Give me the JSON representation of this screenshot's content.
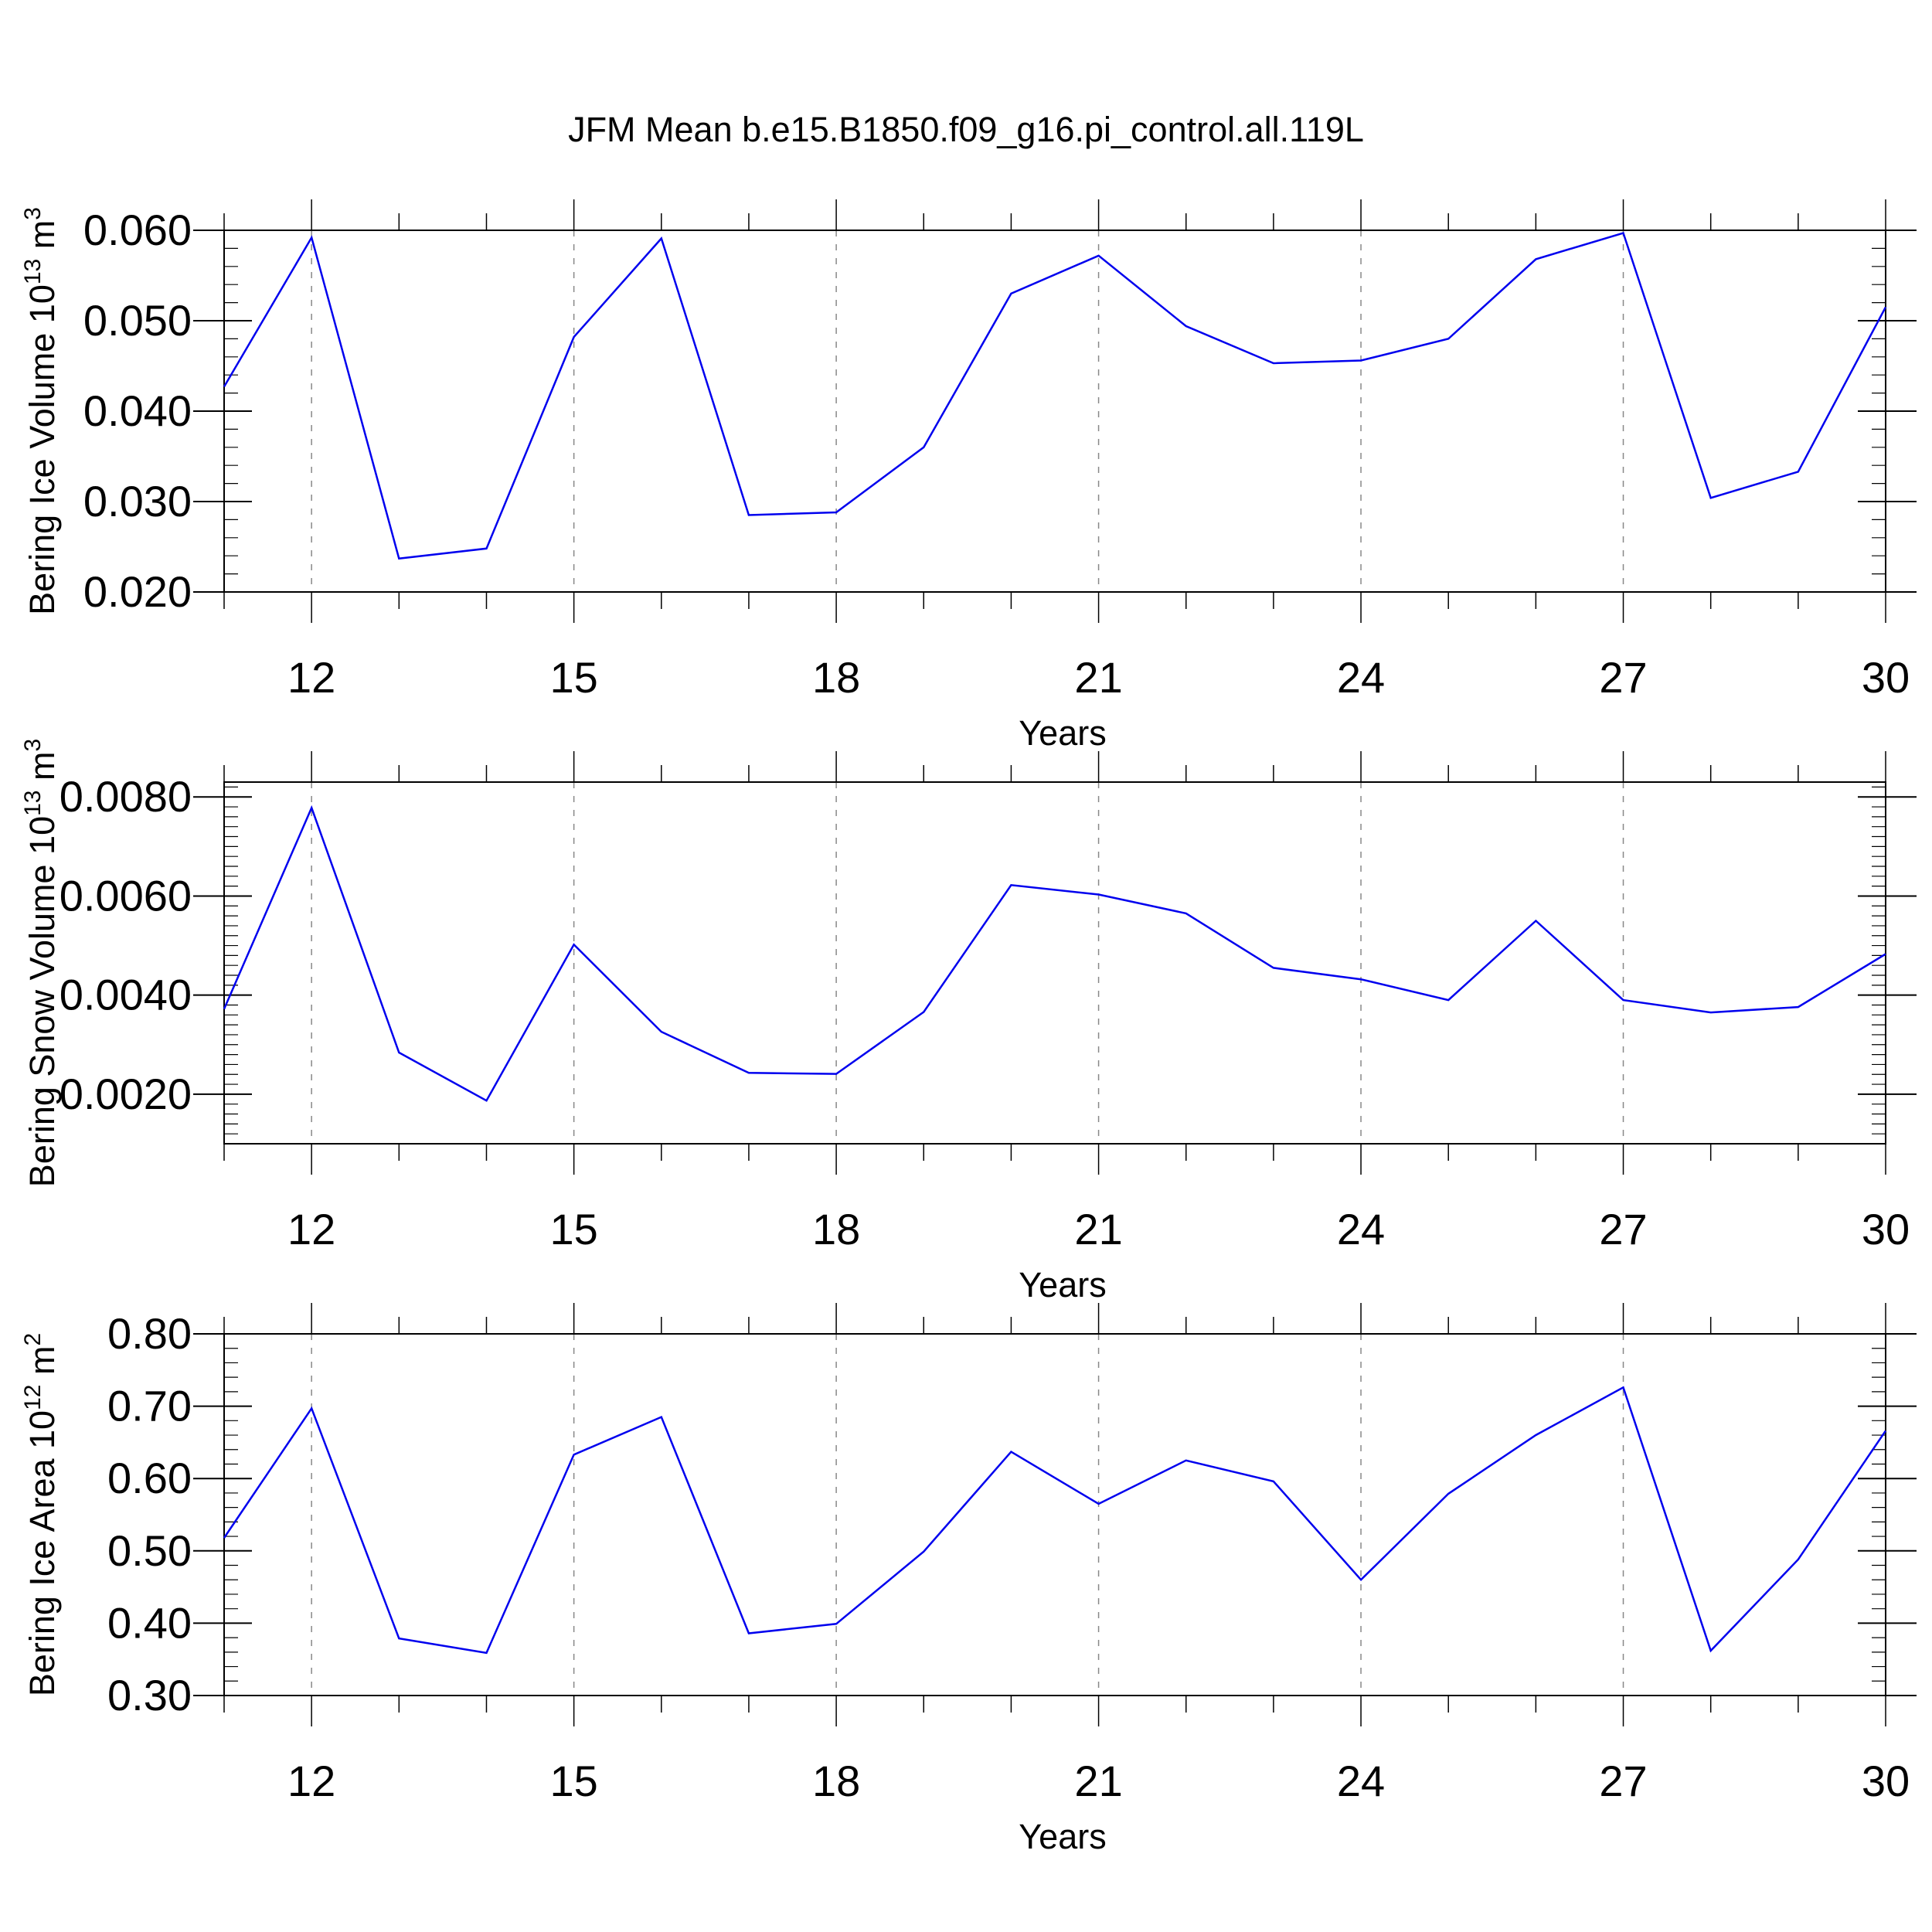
{
  "title": "JFM Mean b.e15.B1850.f09_g16.pi_control.all.119L",
  "colors": {
    "series": "#0000ee",
    "axis": "#000000",
    "grid": "#888888"
  },
  "chart_data": [
    {
      "type": "line",
      "ylabel": "Bering Ice Volume 10",
      "ylabel_exp": "13",
      "ylabel_unit": " m",
      "ylabel_unit_exp": "3",
      "xlabel": "Years",
      "xlim": [
        11,
        30
      ],
      "ylim": [
        0.02,
        0.06
      ],
      "yticks": [
        0.02,
        0.03,
        0.04,
        0.05,
        0.06
      ],
      "ytick_labels": [
        "0.020",
        "0.030",
        "0.040",
        "0.050",
        "0.060"
      ],
      "xticks": [
        12,
        15,
        18,
        21,
        24,
        27,
        30
      ],
      "xtick_labels": [
        "12",
        "15",
        "18",
        "21",
        "24",
        "27",
        "30"
      ],
      "grid": "vertical dashed at major x ticks",
      "x": [
        11,
        12,
        13,
        14,
        15,
        16,
        17,
        18,
        19,
        20,
        21,
        22,
        23,
        24,
        25,
        26,
        27,
        28,
        29,
        30
      ],
      "values": [
        0.0427,
        0.0592,
        0.0237,
        0.0248,
        0.0482,
        0.0591,
        0.0285,
        0.0288,
        0.036,
        0.053,
        0.0572,
        0.0494,
        0.0453,
        0.0456,
        0.048,
        0.0568,
        0.0597,
        0.0304,
        0.0333,
        0.0515
      ]
    },
    {
      "type": "line",
      "ylabel": "Bering Snow Volume 10",
      "ylabel_exp": "13",
      "ylabel_unit": " m",
      "ylabel_unit_exp": "3",
      "xlabel": "Years",
      "xlim": [
        11,
        30
      ],
      "ylim": [
        0.001,
        0.0083
      ],
      "yticks": [
        0.002,
        0.004,
        0.006,
        0.008
      ],
      "ytick_labels": [
        "0.0020",
        "0.0040",
        "0.0060",
        "0.0080"
      ],
      "xticks": [
        12,
        15,
        18,
        21,
        24,
        27,
        30
      ],
      "xtick_labels": [
        "12",
        "15",
        "18",
        "21",
        "24",
        "27",
        "30"
      ],
      "grid": "vertical dashed at major x ticks",
      "x": [
        11,
        12,
        13,
        14,
        15,
        16,
        17,
        18,
        19,
        20,
        21,
        22,
        23,
        24,
        25,
        26,
        27,
        28,
        29,
        30
      ],
      "values": [
        0.00372,
        0.00778,
        0.00284,
        0.00187,
        0.00502,
        0.00326,
        0.00243,
        0.00241,
        0.00366,
        0.00622,
        0.00603,
        0.00565,
        0.00455,
        0.00432,
        0.0039,
        0.0055,
        0.0039,
        0.00365,
        0.00376,
        0.00483
      ]
    },
    {
      "type": "line",
      "ylabel": "Bering Ice Area 10",
      "ylabel_exp": "12",
      "ylabel_unit": " m",
      "ylabel_unit_exp": "2",
      "xlabel": "Years",
      "xlim": [
        11,
        30
      ],
      "ylim": [
        0.3,
        0.8
      ],
      "yticks": [
        0.3,
        0.4,
        0.5,
        0.6,
        0.7,
        0.8
      ],
      "ytick_labels": [
        "0.30",
        "0.40",
        "0.50",
        "0.60",
        "0.70",
        "0.80"
      ],
      "xticks": [
        12,
        15,
        18,
        21,
        24,
        27,
        30
      ],
      "xtick_labels": [
        "12",
        "15",
        "18",
        "21",
        "24",
        "27",
        "30"
      ],
      "grid": "vertical dashed at major x ticks",
      "x": [
        11,
        12,
        13,
        14,
        15,
        16,
        17,
        18,
        19,
        20,
        21,
        22,
        23,
        24,
        25,
        26,
        27,
        28,
        29,
        30
      ],
      "values": [
        0.518,
        0.697,
        0.379,
        0.359,
        0.633,
        0.685,
        0.386,
        0.399,
        0.499,
        0.637,
        0.565,
        0.625,
        0.596,
        0.46,
        0.579,
        0.66,
        0.726,
        0.362,
        0.488,
        0.666
      ]
    }
  ]
}
